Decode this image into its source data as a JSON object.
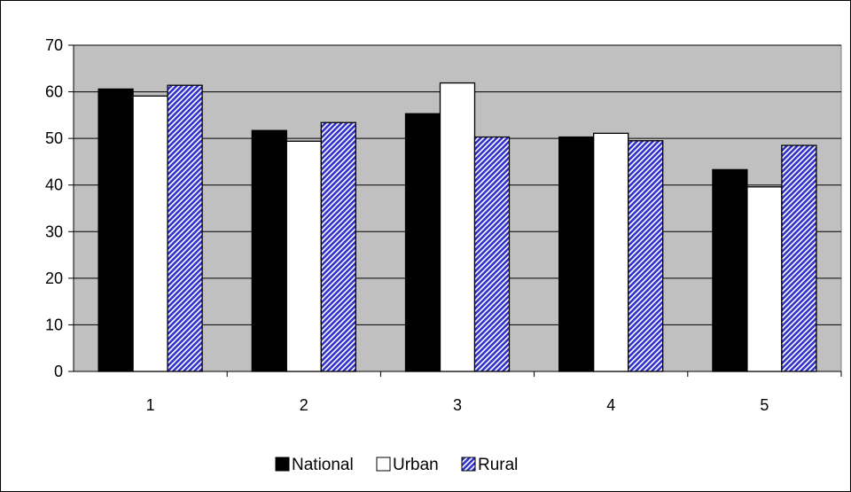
{
  "chart_data": {
    "type": "bar",
    "title": "",
    "xlabel": "",
    "ylabel": "",
    "categories": [
      "1",
      "2",
      "3",
      "4",
      "5"
    ],
    "ylim": [
      0,
      70
    ],
    "yticks": [
      0,
      10,
      20,
      30,
      40,
      50,
      60,
      70
    ],
    "grid": true,
    "legend_position": "bottom",
    "plot_background": "#C0C0C0",
    "series": [
      {
        "name": "National",
        "values": [
          60.6,
          51.7,
          55.3,
          50.3,
          43.3
        ],
        "color": "#000000",
        "pattern": "solid"
      },
      {
        "name": "Urban",
        "values": [
          59.1,
          49.4,
          61.9,
          51.1,
          39.6
        ],
        "color": "#FFFFFF",
        "pattern": "solid"
      },
      {
        "name": "Rural",
        "values": [
          61.4,
          53.4,
          50.3,
          49.5,
          48.5
        ],
        "color": "#3333CC",
        "pattern": "diagonal-hatch"
      }
    ]
  }
}
